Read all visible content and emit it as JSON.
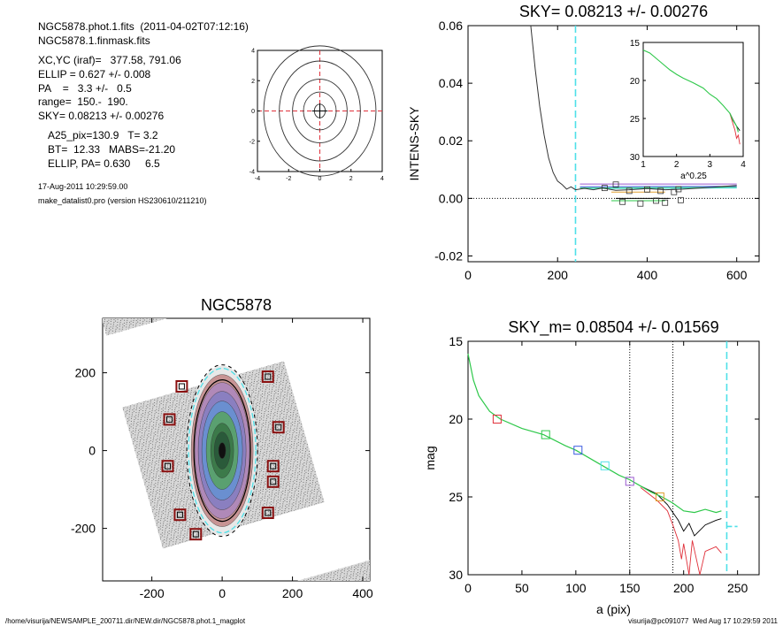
{
  "header": {
    "file_line": "NGC5878.phot.1.fits  (2011-04-02T07:12:16)",
    "mask_line": "NGC5878.1.finmask.fits",
    "params": [
      "XC,YC (iraf)=   377.58, 791.06",
      "ELLIP = 0.627 +/- 0.008",
      "PA    =   3.3 +/-   0.5",
      "range=  150.-  190.",
      "SKY= 0.08213 +/- 0.00276"
    ],
    "results": [
      "A25_pix=130.9   T= 3.2",
      "BT=  12.33   MABS=-21.20",
      "ELLIP, PA= 0.630     6.5"
    ],
    "date_line": "17-Aug-2011 10:29:59.00",
    "program_line": "make_datalist0.pro (version HS230610/211210)"
  },
  "footer": {
    "left": "/home/visurija/NEWSAMPLE_200711.dir/NEW.dir/NGC5878.phot.1_magplot",
    "right": "visurija@pc091077  Wed Aug 17 10:29:59 2011"
  },
  "colors": {
    "axis": "#000000",
    "red": "#e0303a",
    "green": "#2ec84a",
    "blue": "#3a5ae0",
    "cyan": "#4ee0e8",
    "purple": "#9a5ad0",
    "orange": "#e0a030",
    "darkred": "#8a1010",
    "grey": "#333333"
  },
  "chart_data": [
    {
      "id": "contour",
      "type": "contour",
      "xticks": [
        "-4",
        "-2",
        "0",
        "2",
        "4"
      ],
      "yticks": [
        "-4",
        "-2",
        "0",
        "2",
        "4"
      ],
      "xlim": [
        -4,
        4
      ],
      "ylim": [
        -4,
        4
      ],
      "levels_half_widths": [
        [
          0.35,
          0.45
        ],
        [
          1.05,
          1.25
        ],
        [
          1.75,
          2.1
        ],
        [
          2.6,
          3.3
        ],
        [
          3.6,
          4.3
        ]
      ],
      "crosshair": [
        0,
        0
      ]
    },
    {
      "id": "sky",
      "type": "line",
      "title": "SKY= 0.08213 +/- 0.00276",
      "ylabel": "INTENS-SKY",
      "xlim": [
        0,
        650
      ],
      "ylim": [
        -0.022,
        0.06
      ],
      "xticks": [
        "0",
        "200",
        "400",
        "600"
      ],
      "yticks": [
        "-0.02",
        "0.00",
        "0.02",
        "0.04",
        "0.06"
      ],
      "ytick_values": [
        -0.02,
        0,
        0.02,
        0.04,
        0.06
      ],
      "profile": [
        [
          140,
          0.06
        ],
        [
          150,
          0.045
        ],
        [
          160,
          0.032
        ],
        [
          170,
          0.022
        ],
        [
          180,
          0.014
        ],
        [
          190,
          0.009
        ],
        [
          200,
          0.006
        ],
        [
          210,
          0.0048
        ],
        [
          220,
          0.0032
        ],
        [
          230,
          0.004
        ],
        [
          240,
          0.003
        ],
        [
          260,
          0.0035
        ],
        [
          280,
          0.003
        ],
        [
          300,
          0.0036
        ],
        [
          330,
          0.0028
        ],
        [
          360,
          0.003
        ],
        [
          400,
          0.0034
        ],
        [
          440,
          0.003
        ],
        [
          480,
          0.0032
        ],
        [
          520,
          0.0036
        ],
        [
          560,
          0.004
        ],
        [
          600,
          0.0045
        ]
      ],
      "cyan_vline": 240,
      "ring_lines": [
        {
          "color": "purple",
          "pts": [
            [
              250,
              0.005
            ],
            [
              600,
              0.005
            ]
          ]
        },
        {
          "color": "blue",
          "pts": [
            [
              250,
              0.004
            ],
            [
              600,
              0.0042
            ]
          ]
        },
        {
          "color": "green",
          "pts": [
            [
              250,
              0.0036
            ],
            [
              600,
              0.0038
            ]
          ]
        },
        {
          "color": "cyan",
          "pts": [
            [
              250,
              0.0034
            ],
            [
              600,
              0.0036
            ]
          ]
        },
        {
          "color": "orange",
          "pts": [
            [
              320,
              0.0022
            ],
            [
              440,
              0.0022
            ]
          ]
        },
        {
          "color": "green",
          "pts": [
            [
              320,
              -0.0008
            ],
            [
              440,
              -0.0008
            ]
          ]
        },
        {
          "color": "axis",
          "pts": [
            [
              330,
              0.0
            ],
            [
              450,
              0.0
            ]
          ]
        }
      ],
      "squares": [
        [
          330,
          0.0048
        ],
        [
          360,
          0.0026
        ],
        [
          400,
          0.0031
        ],
        [
          430,
          0.0026
        ],
        [
          460,
          0.0022
        ],
        [
          345,
          -0.0012
        ],
        [
          385,
          -0.0018
        ],
        [
          420,
          -0.0008
        ],
        [
          440,
          -0.0015
        ],
        [
          475,
          -0.0006
        ],
        [
          305,
          0.0036
        ],
        [
          470,
          0.0032
        ]
      ],
      "inset": {
        "xlabel": "a^0.25",
        "xlim": [
          1,
          4
        ],
        "ylim": [
          15,
          30
        ],
        "xticks": [
          "1",
          "2",
          "3",
          "4"
        ],
        "yticks": [
          "15",
          "20",
          "25",
          "30"
        ],
        "curve": [
          [
            1.0,
            16.0
          ],
          [
            1.2,
            16.4
          ],
          [
            1.5,
            17.5
          ],
          [
            1.8,
            18.6
          ],
          [
            2.0,
            19.2
          ],
          [
            2.2,
            19.7
          ],
          [
            2.5,
            20.3
          ],
          [
            2.8,
            21.0
          ],
          [
            3.0,
            21.8
          ],
          [
            3.2,
            22.4
          ],
          [
            3.4,
            23.3
          ],
          [
            3.6,
            24.3
          ],
          [
            3.7,
            25.3
          ],
          [
            3.8,
            26.0
          ],
          [
            3.85,
            26.8
          ]
        ],
        "tail_red": [
          [
            3.6,
            24.3
          ],
          [
            3.7,
            25.8
          ],
          [
            3.75,
            26.5
          ],
          [
            3.8,
            27.6
          ],
          [
            3.85,
            27.2
          ],
          [
            3.9,
            28.4
          ]
        ],
        "tail_black": [
          [
            3.6,
            24.3
          ],
          [
            3.7,
            25.2
          ],
          [
            3.8,
            26.0
          ],
          [
            3.9,
            26.6
          ]
        ]
      }
    },
    {
      "id": "image",
      "type": "image",
      "title": "NGC5878",
      "xlim": [
        -340,
        420
      ],
      "ylim": [
        -335,
        340
      ],
      "xticks": [
        "-200",
        "0",
        "200",
        "400"
      ],
      "yticks": [
        "200",
        "0",
        "-200"
      ],
      "ytick_values": [
        200,
        0,
        -200
      ],
      "mask_boxes": [
        [
          -115,
          165
        ],
        [
          -150,
          80
        ],
        [
          -155,
          -40
        ],
        [
          -120,
          -165
        ],
        [
          -75,
          -215
        ],
        [
          130,
          190
        ],
        [
          160,
          60
        ],
        [
          145,
          -40
        ],
        [
          145,
          -80
        ],
        [
          130,
          -160
        ]
      ]
    },
    {
      "id": "mag",
      "type": "line",
      "title": "SKY_m=  0.08504 +/- 0.01569",
      "xlabel": "a (pix)",
      "ylabel": "mag",
      "xlim": [
        0,
        270
      ],
      "ylim": [
        15,
        30
      ],
      "xticks": [
        "0",
        "50",
        "100",
        "150",
        "200",
        "250"
      ],
      "yticks": [
        "15",
        "20",
        "25",
        "30"
      ],
      "dotted_vlines": [
        150,
        190
      ],
      "cyan_vline": 240,
      "green": [
        [
          0,
          15.8
        ],
        [
          5,
          17.5
        ],
        [
          10,
          18.5
        ],
        [
          20,
          19.5
        ],
        [
          30,
          20.0
        ],
        [
          50,
          20.6
        ],
        [
          70,
          21.0
        ],
        [
          90,
          21.7
        ],
        [
          100,
          22.0
        ],
        [
          120,
          22.8
        ],
        [
          140,
          23.6
        ],
        [
          150,
          23.9
        ],
        [
          160,
          24.3
        ],
        [
          170,
          24.7
        ],
        [
          180,
          25.0
        ],
        [
          190,
          25.4
        ],
        [
          200,
          25.9
        ],
        [
          210,
          26.0
        ],
        [
          220,
          25.8
        ],
        [
          230,
          26.0
        ],
        [
          235,
          25.9
        ]
      ],
      "black_tail": [
        [
          160,
          24.3
        ],
        [
          175,
          24.8
        ],
        [
          185,
          25.5
        ],
        [
          190,
          26.0
        ],
        [
          195,
          26.5
        ],
        [
          200,
          27.2
        ],
        [
          205,
          26.7
        ],
        [
          210,
          27.5
        ],
        [
          220,
          26.8
        ],
        [
          230,
          26.5
        ],
        [
          235,
          26.4
        ]
      ],
      "red_tail": [
        [
          160,
          24.4
        ],
        [
          175,
          25.2
        ],
        [
          185,
          25.9
        ],
        [
          190,
          26.8
        ],
        [
          195,
          27.8
        ],
        [
          198,
          29.0
        ],
        [
          200,
          28.0
        ],
        [
          205,
          30.0
        ],
        [
          208,
          27.8
        ],
        [
          215,
          30.0
        ],
        [
          220,
          28.5
        ],
        [
          230,
          28.2
        ],
        [
          235,
          28.6
        ]
      ],
      "cyan_step": [
        [
          240,
          26.9
        ],
        [
          250,
          26.9
        ]
      ],
      "squares": [
        {
          "x": 27,
          "y": 20.0,
          "color": "red"
        },
        {
          "x": 72,
          "y": 21.0,
          "color": "green"
        },
        {
          "x": 102,
          "y": 22.0,
          "color": "blue"
        },
        {
          "x": 127,
          "y": 23.0,
          "color": "cyan"
        },
        {
          "x": 150,
          "y": 24.0,
          "color": "purple"
        },
        {
          "x": 178,
          "y": 25.0,
          "color": "orange"
        }
      ]
    }
  ]
}
